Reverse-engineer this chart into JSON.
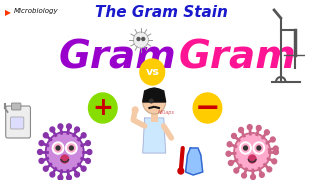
{
  "bg_color": "#ffffff",
  "title": "The Gram Stain",
  "title_color": "#1a1acc",
  "title_fontsize": 11,
  "micro_label": "Microbiology",
  "micro_color": "#111111",
  "micro_fontsize": 5.0,
  "gram_left": "Gram",
  "gram_right": "Gram",
  "gram_left_color": "#9900cc",
  "gram_right_color": "#ff1493",
  "gram_fontsize": 28,
  "vs_text": "vs",
  "vs_color": "#ffffff",
  "vs_bg": "#ffcc00",
  "plus_color": "#88dd00",
  "plus_text": "+",
  "minus_text": "−",
  "sign_fontsize": 18,
  "sign_text_color": "#cc0000",
  "bacterium_left_color": "#cc88dd",
  "bacterium_left_ec": "#8833aa",
  "bacterium_right_color": "#ffaacc",
  "bacterium_right_ec": "#cc6688",
  "skin_color": "#f5cba7",
  "hair_color": "#111111",
  "shirt_color": "#cce8ff",
  "arrow_color": "#ff3300",
  "micro_arrow_color": "#ff3300",
  "scope_color": "#555555",
  "equip_color": "#888888"
}
